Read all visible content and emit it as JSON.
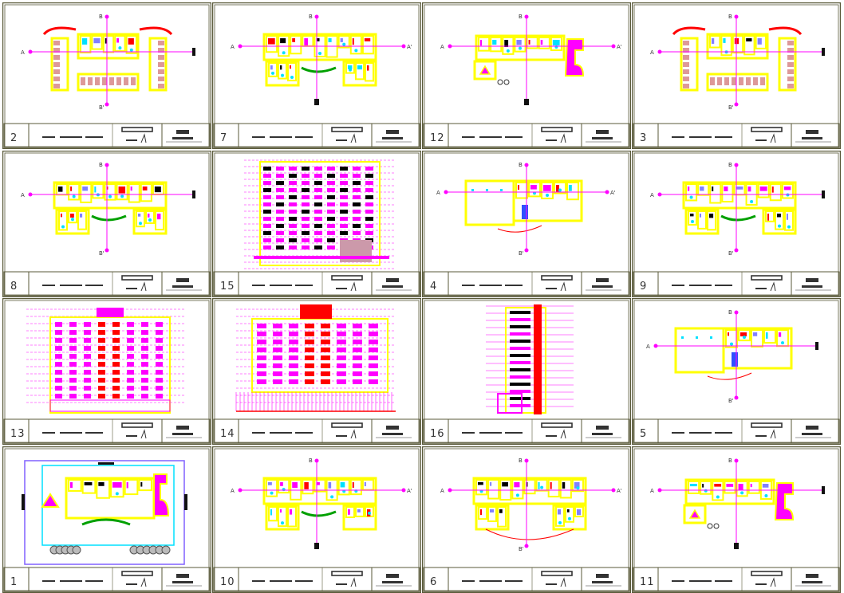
{
  "sheets": [
    {
      "number": "2",
      "type": "plan-wings",
      "labels": {
        "left": "A",
        "top": "B",
        "bottom": "B'"
      }
    },
    {
      "number": "7",
      "type": "plan-bays",
      "labels": {
        "left": "A",
        "right": "A'",
        "top": "B"
      }
    },
    {
      "number": "12",
      "type": "plan-magenta",
      "labels": {
        "left": "A",
        "right": "A'",
        "top": "B"
      }
    },
    {
      "number": "3",
      "type": "plan-wings",
      "labels": {
        "left": "A",
        "top": "B",
        "bottom": "B'"
      }
    },
    {
      "number": "8",
      "type": "plan-bays",
      "labels": {
        "left": "A",
        "top": "B",
        "bottom": "B'"
      }
    },
    {
      "number": "15",
      "type": "elevation-dense",
      "labels": {}
    },
    {
      "number": "4",
      "type": "plan-open",
      "labels": {
        "left": "A",
        "right": "A'",
        "top": "B",
        "bottom": "B'"
      }
    },
    {
      "number": "9",
      "type": "plan-bays",
      "labels": {
        "left": "A",
        "top": "B",
        "bottom": "B'"
      }
    },
    {
      "number": "13",
      "type": "elevation-tower",
      "labels": {}
    },
    {
      "number": "14",
      "type": "elevation-front",
      "labels": {}
    },
    {
      "number": "16",
      "type": "section-narrow",
      "labels": {}
    },
    {
      "number": "5",
      "type": "plan-small",
      "labels": {
        "left": "A",
        "top": "B",
        "bottom": "B'"
      }
    },
    {
      "number": "1",
      "type": "site-plan",
      "labels": {}
    },
    {
      "number": "10",
      "type": "plan-bays",
      "labels": {
        "left": "A",
        "right": "A'",
        "top": "B"
      }
    },
    {
      "number": "6",
      "type": "plan-arc",
      "labels": {
        "left": "A",
        "right": "A'",
        "top": "B",
        "bottom": "B'"
      }
    },
    {
      "number": "11",
      "type": "plan-magenta",
      "labels": {
        "left": "A",
        "top": "B"
      }
    }
  ],
  "colors": {
    "frame": "#5a5a3a",
    "wall": "#ffff00",
    "accent": "#ff00ff",
    "cyan": "#00e0ff",
    "red": "#ff0000",
    "green": "#00a000",
    "dark": "#333333"
  }
}
